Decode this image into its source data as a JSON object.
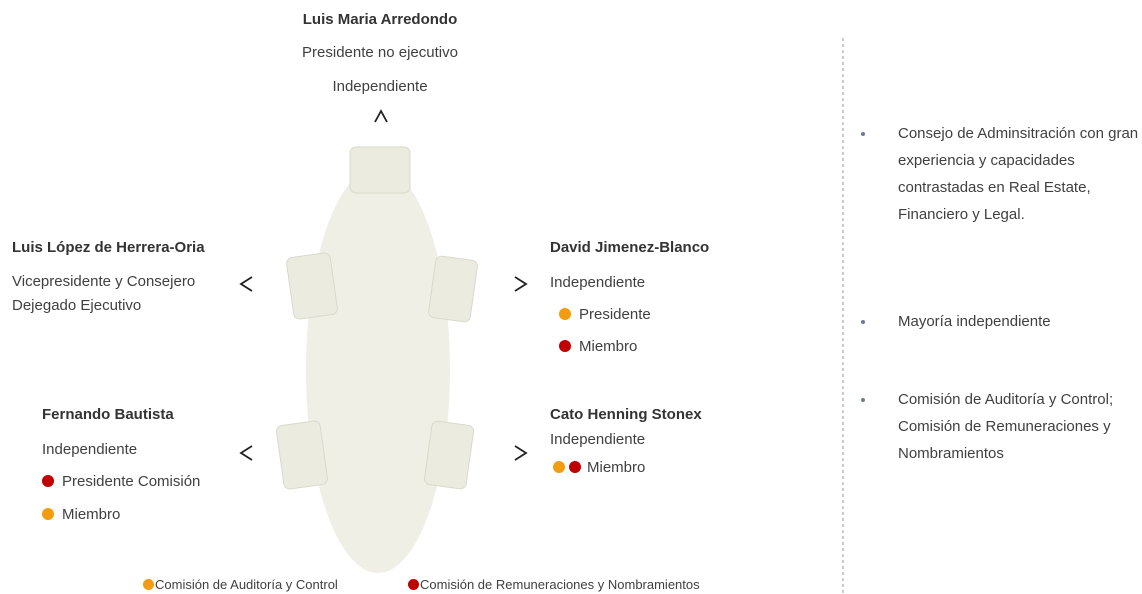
{
  "board": {
    "chair": {
      "name": "Luis Maria Arredondo",
      "lines": [
        "Presidente no ejecutivo",
        "Independiente"
      ]
    },
    "members": [
      {
        "name": "Luis López de Herrera-Oria",
        "lines": [
          "Vicepresidente y Consejero",
          "Dejegado Ejecutivo"
        ],
        "bullets": []
      },
      {
        "name": "David Jimenez-Blanco",
        "lines": [
          "Independiente"
        ],
        "bullets": [
          {
            "colors": [
              "#f39c12"
            ],
            "label": "Presidente"
          },
          {
            "colors": [
              "#c00000"
            ],
            "label": "Miembro"
          }
        ]
      },
      {
        "name": "Fernando Bautista",
        "lines": [
          "Independiente"
        ],
        "bullets": [
          {
            "colors": [
              "#c00000"
            ],
            "label": "Presidente Comisión"
          },
          {
            "colors": [
              "#f39c12"
            ],
            "label": "Miembro"
          }
        ]
      },
      {
        "name": "Cato Henning Stonex",
        "lines": [
          "Independiente"
        ],
        "bullets": [
          {
            "colors": [
              "#f39c12",
              "#c00000"
            ],
            "label": "Miembro"
          }
        ]
      }
    ],
    "legend": [
      {
        "color": "#f39c12",
        "label": "Comisión de Auditoría y Control"
      },
      {
        "color": "#c00000",
        "label": "Comisión de Remuneraciones y Nombramientos"
      }
    ]
  },
  "highlights": [
    "Consejo de Adminsitración con gran experiencia y capacidades contrastadas en Real Estate, Financiero y Legal.",
    "Mayoría independiente",
    "Comisión de Auditoría y Control; Comisión de Remuneraciones y Nombramientos"
  ]
}
